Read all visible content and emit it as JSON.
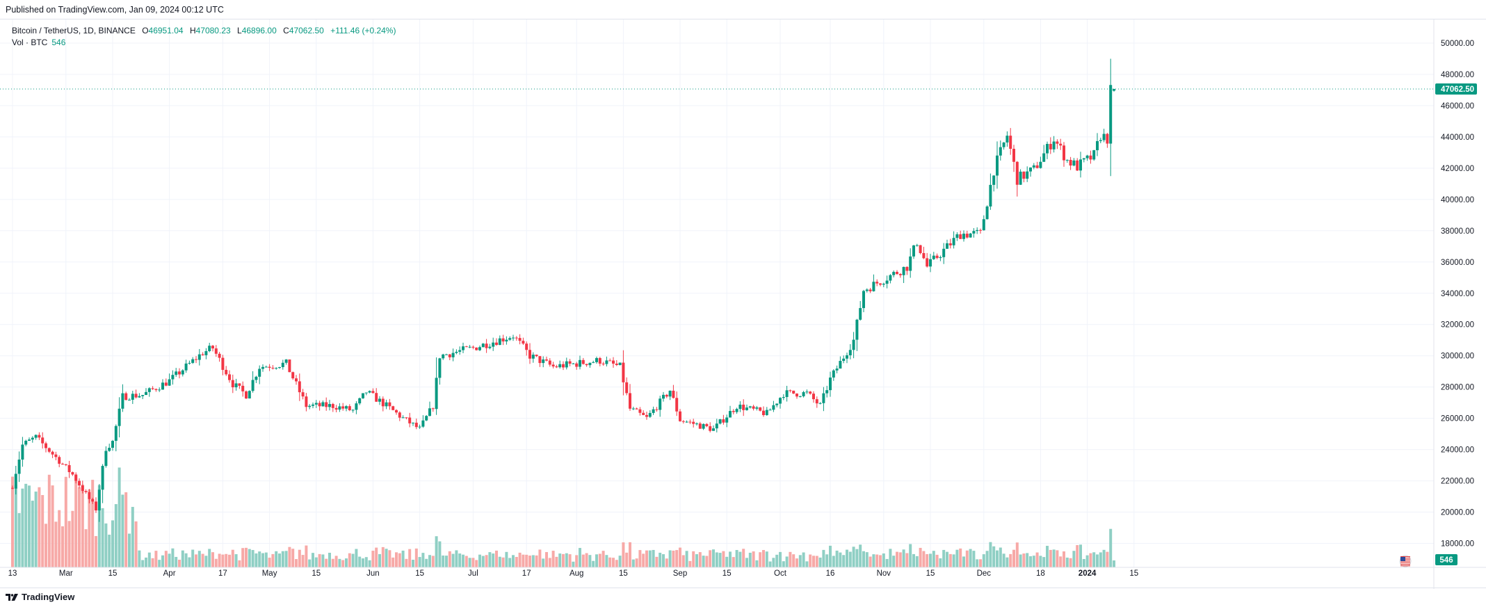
{
  "published": "Published on TradingView.com, Jan 09, 2024 00:12 UTC",
  "legend": {
    "symbol": "Bitcoin / TetherUS, 1D, BINANCE",
    "o_label": "O",
    "o_value": "46951.04",
    "h_label": "H",
    "h_value": "47080.23",
    "l_label": "L",
    "l_value": "46896.00",
    "c_label": "C",
    "c_value": "47062.50",
    "change": "+111.46 (+0.24%)",
    "vol_label": "Vol · BTC",
    "vol_value": "546"
  },
  "footer": {
    "brand": "TradingView",
    "logo_icon": "tradingview-logo-icon",
    "flag_icon": "us-flag-icon"
  },
  "colors": {
    "up": "#089981",
    "down": "#f23645",
    "up_vol": "#8fcfc4",
    "down_vol": "#f7a9a7",
    "grid": "#f0f3fa",
    "text": "#131722"
  },
  "chart_data": {
    "type": "candlestick",
    "symbol": "Bitcoin / TetherUS",
    "interval": "1D",
    "exchange": "BINANCE",
    "ylim": [
      17000,
      50800
    ],
    "y_ticks": [
      "18000.00",
      "20000.00",
      "22000.00",
      "24000.00",
      "26000.00",
      "28000.00",
      "30000.00",
      "32000.00",
      "34000.00",
      "36000.00",
      "38000.00",
      "40000.00",
      "42000.00",
      "44000.00",
      "46000.00",
      "48000.00",
      "50000.00"
    ],
    "x_tick_labels": [
      "13",
      "Mar",
      "15",
      "Apr",
      "17",
      "May",
      "15",
      "Jun",
      "15",
      "Jul",
      "17",
      "Aug",
      "15",
      "Sep",
      "15",
      "Oct",
      "16",
      "Nov",
      "15",
      "Dec",
      "18",
      "2024",
      "15"
    ],
    "last_price": "47062.50",
    "last_volume": "546",
    "grid": true,
    "price_anchors": [
      [
        "2023-02-13",
        21700
      ],
      [
        "2023-02-16",
        24300
      ],
      [
        "2023-02-20",
        24800
      ],
      [
        "2023-02-26",
        23500
      ],
      [
        "2023-03-03",
        22400
      ],
      [
        "2023-03-10",
        20200
      ],
      [
        "2023-03-13",
        24100
      ],
      [
        "2023-03-15",
        24500
      ],
      [
        "2023-03-18",
        27400
      ],
      [
        "2023-03-24",
        27500
      ],
      [
        "2023-04-01",
        28400
      ],
      [
        "2023-04-11",
        30200
      ],
      [
        "2023-04-14",
        30500
      ],
      [
        "2023-04-20",
        28200
      ],
      [
        "2023-04-24",
        27500
      ],
      [
        "2023-04-28",
        29300
      ],
      [
        "2023-05-06",
        29500
      ],
      [
        "2023-05-12",
        26800
      ],
      [
        "2023-05-20",
        26800
      ],
      [
        "2023-05-26",
        26500
      ],
      [
        "2023-05-30",
        27700
      ],
      [
        "2023-06-05",
        26800
      ],
      [
        "2023-06-10",
        26000
      ],
      [
        "2023-06-15",
        25300
      ],
      [
        "2023-06-19",
        26800
      ],
      [
        "2023-06-21",
        30000
      ],
      [
        "2023-07-01",
        30500
      ],
      [
        "2023-07-13",
        31300
      ],
      [
        "2023-07-18",
        30000
      ],
      [
        "2023-07-25",
        29300
      ],
      [
        "2023-08-08",
        29700
      ],
      [
        "2023-08-14",
        29300
      ],
      [
        "2023-08-17",
        26600
      ],
      [
        "2023-08-22",
        26000
      ],
      [
        "2023-08-29",
        27800
      ],
      [
        "2023-09-01",
        25900
      ],
      [
        "2023-09-11",
        25300
      ],
      [
        "2023-09-18",
        26800
      ],
      [
        "2023-09-27",
        26300
      ],
      [
        "2023-10-02",
        27600
      ],
      [
        "2023-10-09",
        27600
      ],
      [
        "2023-10-13",
        26800
      ],
      [
        "2023-10-16",
        28500
      ],
      [
        "2023-10-23",
        31000
      ],
      [
        "2023-10-26",
        34200
      ],
      [
        "2023-11-08",
        35700
      ],
      [
        "2023-11-11",
        37300
      ],
      [
        "2023-11-14",
        35700
      ],
      [
        "2023-11-24",
        37800
      ],
      [
        "2023-11-30",
        37800
      ],
      [
        "2023-12-04",
        41900
      ],
      [
        "2023-12-08",
        44100
      ],
      [
        "2023-12-11",
        41300
      ],
      [
        "2023-12-16",
        41900
      ],
      [
        "2023-12-22",
        43900
      ],
      [
        "2023-12-26",
        42500
      ],
      [
        "2023-12-29",
        42100
      ],
      [
        "2024-01-03",
        42800
      ],
      [
        "2024-01-05",
        44100
      ],
      [
        "2024-01-07",
        43900
      ],
      [
        "2024-01-08",
        46951
      ],
      [
        "2024-01-09",
        47062.5
      ]
    ]
  }
}
